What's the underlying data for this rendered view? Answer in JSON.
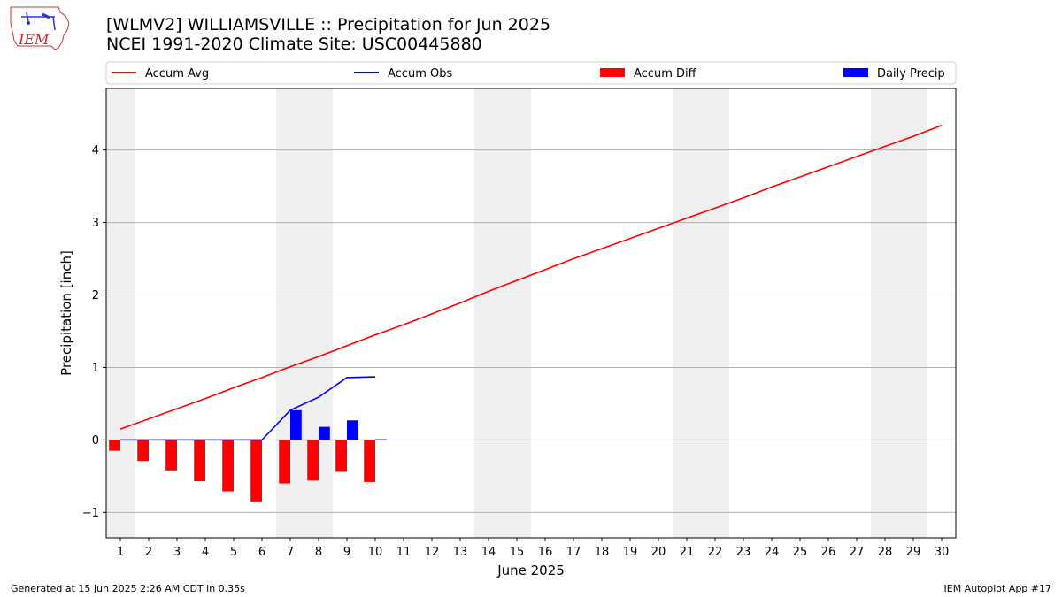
{
  "header": {
    "title_line1": "[WLMV2] WILLIAMSVILLE :: Precipitation for Jun 2025",
    "title_line2": "NCEI 1991-2020 Climate Site: USC00445880",
    "logo_text": "IEM"
  },
  "footer": {
    "generated": "Generated at 15 Jun 2025 2:26 AM CDT in 0.35s",
    "app": "IEM Autoplot App #17"
  },
  "chart_data": {
    "type": "bar",
    "xlabel": "June 2025",
    "ylabel": "Precipitation [inch]",
    "xlim": [
      0.5,
      30.5
    ],
    "ylim": [
      -1.35,
      4.85
    ],
    "yticks": [
      -1,
      0,
      1,
      2,
      3,
      4
    ],
    "ytick_labels": [
      "−1",
      "0",
      "1",
      "2",
      "3",
      "4"
    ],
    "grid": "horizontal",
    "legend_placement": "top",
    "weekend_shading_days": [
      1,
      7,
      8,
      14,
      15,
      21,
      22,
      28,
      29
    ],
    "days": [
      1,
      2,
      3,
      4,
      5,
      6,
      7,
      8,
      9,
      10,
      11,
      12,
      13,
      14,
      15,
      16,
      17,
      18,
      19,
      20,
      21,
      22,
      23,
      24,
      25,
      26,
      27,
      28,
      29,
      30
    ],
    "series": [
      {
        "name": "Accum Avg",
        "kind": "line",
        "color": "#ff0000",
        "values": [
          0.15,
          0.29,
          0.43,
          0.57,
          0.72,
          0.86,
          1.01,
          1.15,
          1.3,
          1.45,
          1.59,
          1.74,
          1.89,
          2.05,
          2.2,
          2.35,
          2.5,
          2.64,
          2.78,
          2.92,
          3.06,
          3.2,
          3.34,
          3.49,
          3.63,
          3.77,
          3.91,
          4.05,
          4.19,
          4.34
        ]
      },
      {
        "name": "Accum Obs",
        "kind": "line",
        "color": "#0000ff",
        "values": [
          0.0,
          0.0,
          0.0,
          0.0,
          0.0,
          0.0,
          0.41,
          0.59,
          0.86,
          0.87
        ]
      },
      {
        "name": "Accum Diff",
        "kind": "bar",
        "color": "#ff0000",
        "offset": -0.2,
        "values": [
          -0.15,
          -0.29,
          -0.42,
          -0.57,
          -0.71,
          -0.86,
          -0.6,
          -0.56,
          -0.44,
          -0.58
        ]
      },
      {
        "name": "Daily Precip",
        "kind": "bar",
        "color": "#0000ff",
        "offset": 0.2,
        "values": [
          0.0,
          0.0,
          0.0,
          0.0,
          0.0,
          0.0,
          0.41,
          0.18,
          0.27,
          0.01
        ]
      }
    ],
    "legend_positions": [
      {
        "name": "Accum Avg",
        "align": "left"
      },
      {
        "name": "Accum Obs",
        "align": "center-left"
      },
      {
        "name": "Accum Diff",
        "align": "center-right"
      },
      {
        "name": "Daily Precip",
        "align": "right"
      }
    ]
  }
}
